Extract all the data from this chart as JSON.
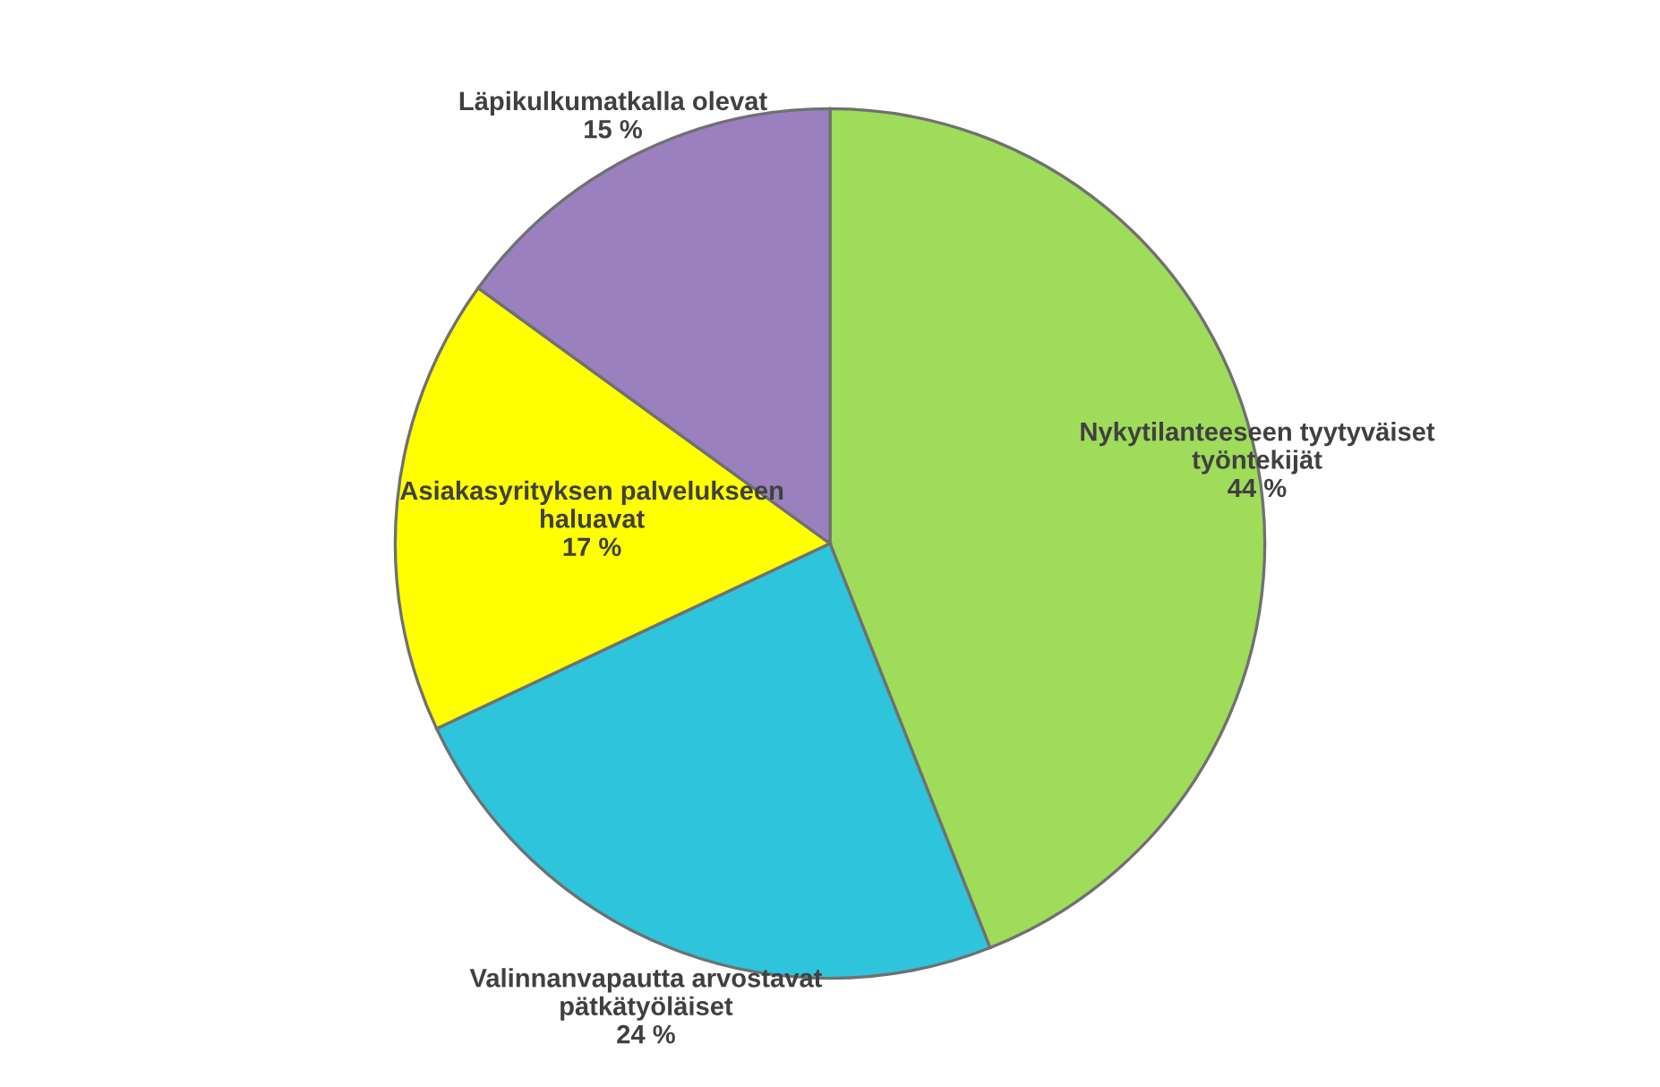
{
  "chart_data": {
    "type": "pie",
    "categories": [
      "Nykytilanteeseen tyytyväiset\ntyöntekijät",
      "Valinnanvapautta arvostavat\npätkätyöläiset",
      "Asiakasyrityksen palvelukseen\nhaluavat",
      "Läpikulkumatkalla olevat"
    ],
    "values": [
      44,
      24,
      17,
      15
    ],
    "value_labels": [
      "44 %",
      "24 %",
      "17 %",
      "15 %"
    ],
    "colors": [
      "#9edc5a",
      "#2ec4dc",
      "#ffff00",
      "#9b80c0"
    ]
  }
}
